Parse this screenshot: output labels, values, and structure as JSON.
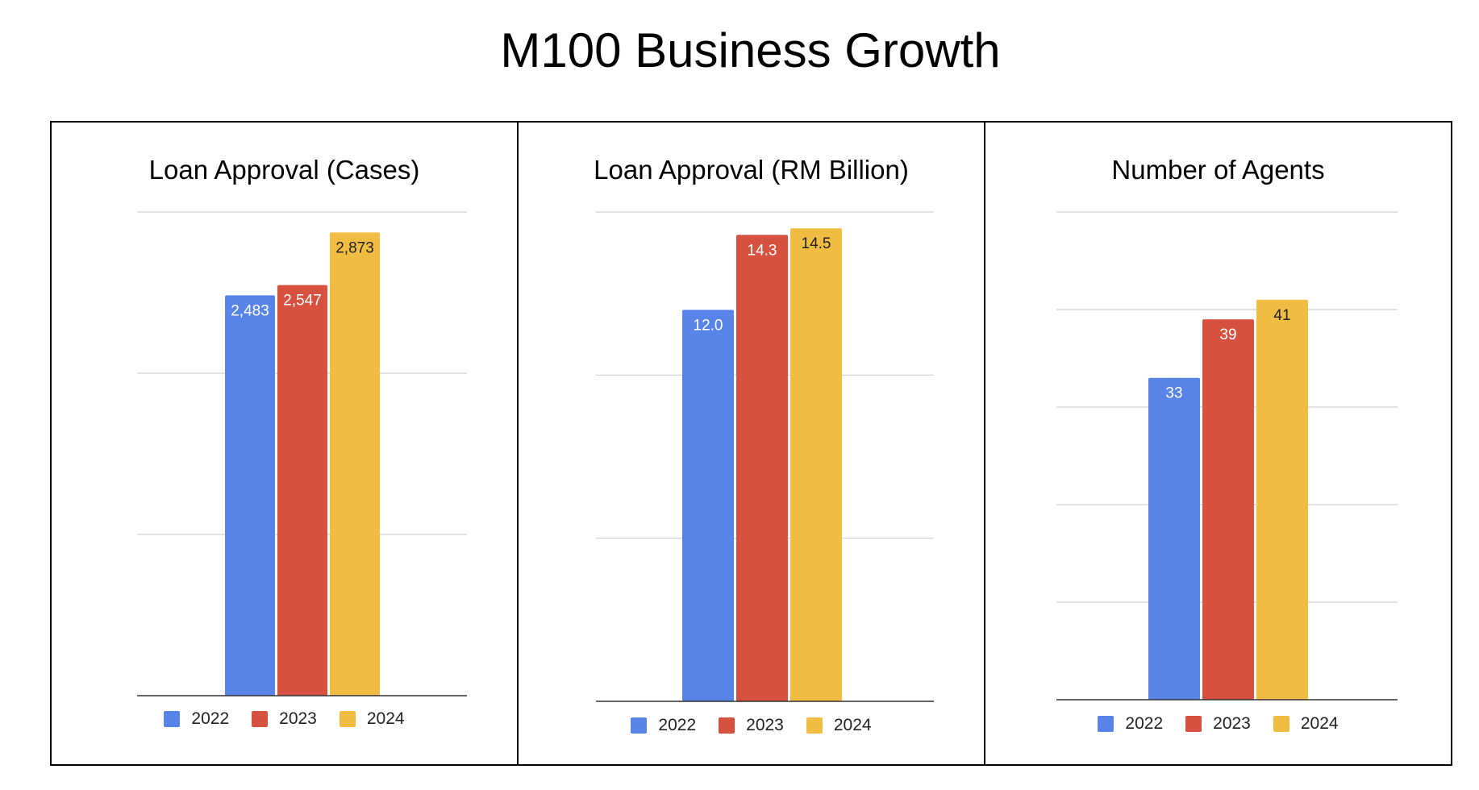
{
  "page": {
    "title": "M100 Business Growth"
  },
  "legend": {
    "years": [
      "2022",
      "2023",
      "2024"
    ],
    "colors": [
      "#5884ea",
      "#d75140",
      "#f0bd42"
    ]
  },
  "chart_data": [
    {
      "type": "bar",
      "title": "Loan Approval (Cases)",
      "categories": [
        ""
      ],
      "series": [
        {
          "name": "2022",
          "values": [
            2483
          ],
          "label": "2,483"
        },
        {
          "name": "2023",
          "values": [
            2547
          ],
          "label": "2,547"
        },
        {
          "name": "2024",
          "values": [
            2873
          ],
          "label": "2,873"
        }
      ],
      "ylim": [
        0,
        3000
      ],
      "gridlines": [
        0,
        1000,
        2000,
        3000
      ],
      "grid": true,
      "legend": "bottom"
    },
    {
      "type": "bar",
      "title": "Loan Approval (RM Billion)",
      "categories": [
        ""
      ],
      "series": [
        {
          "name": "2022",
          "values": [
            12.0
          ],
          "label": "12.0"
        },
        {
          "name": "2023",
          "values": [
            14.3
          ],
          "label": "14.3"
        },
        {
          "name": "2024",
          "values": [
            14.5
          ],
          "label": "14.5"
        }
      ],
      "ylim": [
        0,
        15
      ],
      "gridlines": [
        0,
        5,
        10,
        15
      ],
      "grid": true,
      "legend": "bottom"
    },
    {
      "type": "bar",
      "title": "Number of Agents",
      "categories": [
        ""
      ],
      "series": [
        {
          "name": "2022",
          "values": [
            33
          ],
          "label": "33"
        },
        {
          "name": "2023",
          "values": [
            39
          ],
          "label": "39"
        },
        {
          "name": "2024",
          "values": [
            41
          ],
          "label": "41"
        }
      ],
      "ylim": [
        0,
        50
      ],
      "gridlines": [
        0,
        10,
        20,
        30,
        40,
        50
      ],
      "grid": true,
      "legend": "bottom"
    }
  ]
}
